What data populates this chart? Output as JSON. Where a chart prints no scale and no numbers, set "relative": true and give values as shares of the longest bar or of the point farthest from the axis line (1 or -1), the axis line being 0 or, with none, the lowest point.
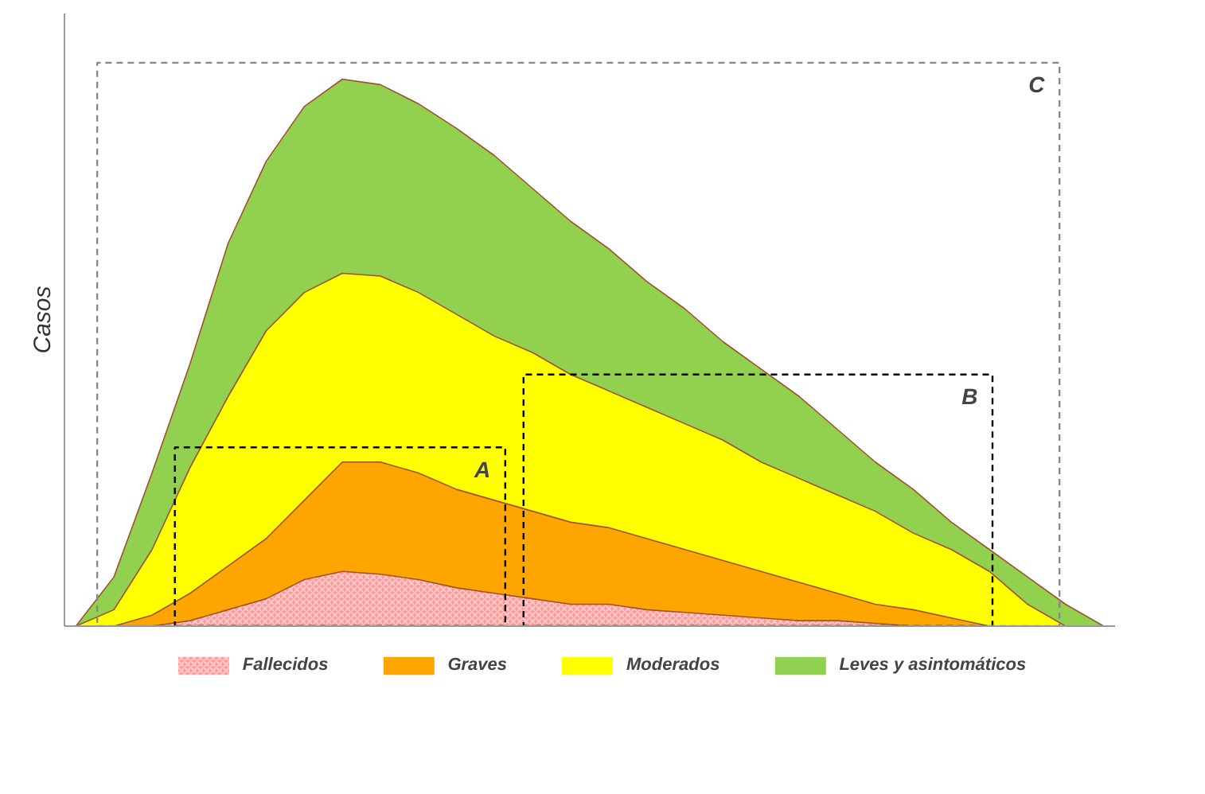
{
  "chart_data": {
    "type": "area",
    "relative": true,
    "ylabel": "Casos",
    "legend": "bottom",
    "categories": [
      null,
      null,
      null,
      null,
      null,
      null,
      null,
      null,
      null,
      null,
      null,
      null,
      null,
      null,
      null,
      null,
      null,
      null,
      null,
      null,
      null,
      null,
      null,
      null,
      null,
      null,
      null,
      null
    ],
    "series": [
      {
        "name": "Leves y asintomáticos",
        "color": "#92d050",
        "values": [
          0,
          0.09,
          0.28,
          0.48,
          0.7,
          0.85,
          0.95,
          1,
          0.99,
          0.955,
          0.91,
          0.86,
          0.8,
          0.74,
          0.69,
          0.63,
          0.58,
          0.52,
          0.47,
          0.42,
          0.36,
          0.3,
          0.25,
          0.19,
          0.14,
          0.09,
          0.04,
          0
        ]
      },
      {
        "name": "Moderados",
        "color": "#ffff00",
        "values": [
          0,
          0.03,
          0.14,
          0.29,
          0.42,
          0.54,
          0.61,
          0.645,
          0.64,
          0.61,
          0.57,
          0.53,
          0.5,
          0.46,
          0.43,
          0.4,
          0.37,
          0.34,
          0.3,
          0.27,
          0.24,
          0.21,
          0.17,
          0.14,
          0.1,
          0.04,
          0,
          0
        ]
      },
      {
        "name": "Graves",
        "color": "#ffa500",
        "values": [
          0,
          0,
          0.02,
          0.06,
          0.11,
          0.16,
          0.23,
          0.3,
          0.3,
          0.28,
          0.25,
          0.23,
          0.21,
          0.19,
          0.18,
          0.16,
          0.14,
          0.12,
          0.1,
          0.08,
          0.06,
          0.04,
          0.03,
          0.015,
          0,
          0,
          0,
          0
        ]
      },
      {
        "name": "Fallecidos",
        "color": "#ff9999",
        "values": [
          0,
          0,
          0,
          0.01,
          0.03,
          0.05,
          0.085,
          0.1,
          0.095,
          0.085,
          0.07,
          0.06,
          0.05,
          0.04,
          0.04,
          0.03,
          0.025,
          0.02,
          0.015,
          0.01,
          0.01,
          0.005,
          0,
          0,
          0,
          0,
          0,
          0
        ]
      }
    ],
    "annotations": [
      "A",
      "B",
      "C"
    ]
  }
}
